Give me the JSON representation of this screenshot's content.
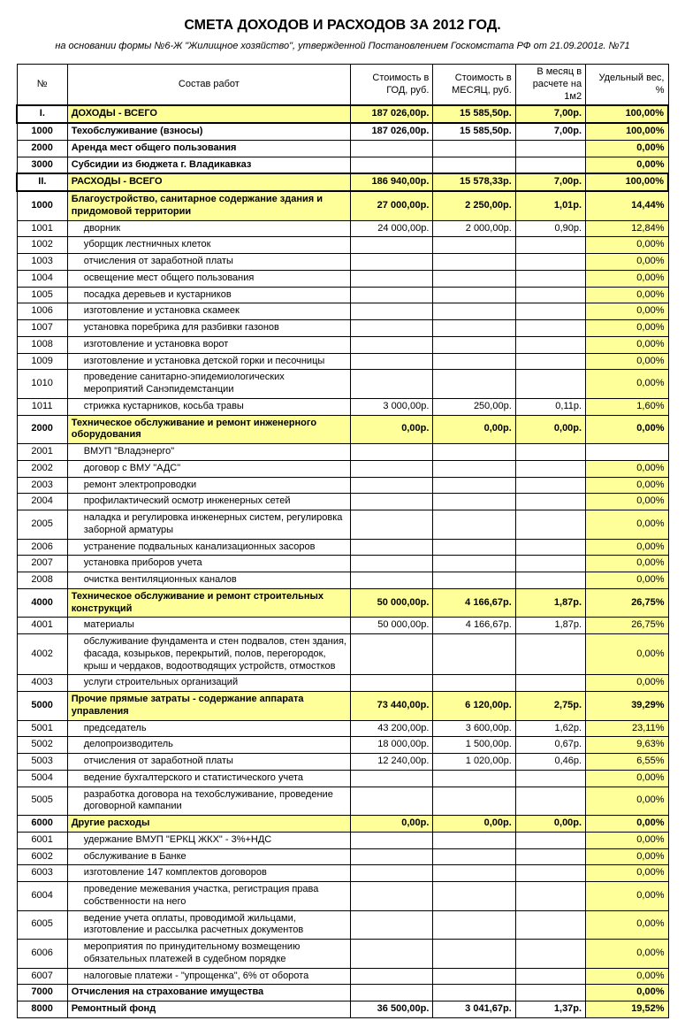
{
  "colors": {
    "yellow": "#feff99"
  },
  "title": "СМЕТА ДОХОДОВ И РАСХОДОВ ЗА 2012  ГОД.",
  "subtitle": "на основании формы №6-Ж \"Жилищное хозяйство\", утвержденной Постановлением Госкомстата РФ от 21.09.2001г. №71",
  "header": {
    "num": "№",
    "desc": "Состав работ",
    "year": "Стоимость в ГОД, руб.",
    "month": "Стоимость в МЕСЯЦ, руб.",
    "m2": "В месяц в расчете на 1м2",
    "weight": "Удельный вес, %"
  },
  "rows": [
    {
      "n": "I.",
      "d": "ДОХОДЫ - ВСЕГО",
      "y": "187 026,00р.",
      "m": "15 585,50р.",
      "p": "7,00р.",
      "w": "100,00%",
      "section": true
    },
    {
      "n": "1000",
      "d": "Техобслуживание (взносы)",
      "y": "187 026,00р.",
      "m": "15 585,50р.",
      "p": "7,00р.",
      "w": "100,00%",
      "bold": true,
      "wy": true
    },
    {
      "n": "2000",
      "d": "Аренда мест общего пользования",
      "y": "",
      "m": "",
      "p": "",
      "w": "0,00%",
      "bold": true,
      "wy": true
    },
    {
      "n": "3000",
      "d": "Субсидии из бюджета г. Владикавказ",
      "y": "",
      "m": "",
      "p": "",
      "w": "0,00%",
      "bold": true,
      "wy": true
    },
    {
      "n": "II.",
      "d": "РАСХОДЫ - ВСЕГО",
      "y": "186 940,00р.",
      "m": "15 578,33р.",
      "p": "7,00р.",
      "w": "100,00%",
      "section": true
    },
    {
      "n": "1000",
      "d": "Благоустройство, санитарное содержание здания и придомовой территории",
      "y": "27 000,00р.",
      "m": "2 250,00р.",
      "p": "1,01р.",
      "w": "14,44%",
      "bold": true,
      "ally": true
    },
    {
      "n": "1001",
      "d": "дворник",
      "y": "24 000,00р.",
      "m": "2 000,00р.",
      "p": "0,90р.",
      "w": "12,84%",
      "indent": true,
      "wy": true
    },
    {
      "n": "1002",
      "d": "уборщик лестничных клеток",
      "y": "",
      "m": "",
      "p": "",
      "w": "0,00%",
      "indent": true,
      "wy": true
    },
    {
      "n": "1003",
      "d": "отчисления от заработной платы",
      "y": "",
      "m": "",
      "p": "",
      "w": "0,00%",
      "indent": true,
      "wy": true
    },
    {
      "n": "1004",
      "d": "освещение мест общего пользования",
      "y": "",
      "m": "",
      "p": "",
      "w": "0,00%",
      "indent": true,
      "wy": true
    },
    {
      "n": "1005",
      "d": "посадка деревьев и кустарников",
      "y": "",
      "m": "",
      "p": "",
      "w": "0,00%",
      "indent": true,
      "wy": true
    },
    {
      "n": "1006",
      "d": "изготовление и установка скамеек",
      "y": "",
      "m": "",
      "p": "",
      "w": "0,00%",
      "indent": true,
      "wy": true
    },
    {
      "n": "1007",
      "d": "установка поребрика для разбивки газонов",
      "y": "",
      "m": "",
      "p": "",
      "w": "0,00%",
      "indent": true,
      "wy": true
    },
    {
      "n": "1008",
      "d": "изготовление и установка ворот",
      "y": "",
      "m": "",
      "p": "",
      "w": "0,00%",
      "indent": true,
      "wy": true
    },
    {
      "n": "1009",
      "d": "изготовление и установка детской горки и песочницы",
      "y": "",
      "m": "",
      "p": "",
      "w": "0,00%",
      "indent": true,
      "wy": true
    },
    {
      "n": "1010",
      "d": "проведение санитарно-эпидемиологических мероприятий Санэпидемстанции",
      "y": "",
      "m": "",
      "p": "",
      "w": "0,00%",
      "indent": true,
      "wy": true
    },
    {
      "n": "1011",
      "d": "стрижка кустарников, косьба травы",
      "y": "3 000,00р.",
      "m": "250,00р.",
      "p": "0,11р.",
      "w": "1,60%",
      "indent": true,
      "wy": true
    },
    {
      "n": "2000",
      "d": "Техническое обслуживание и ремонт инженерного оборудования",
      "y": "0,00р.",
      "m": "0,00р.",
      "p": "0,00р.",
      "w": "0,00%",
      "bold": true,
      "ally": true
    },
    {
      "n": "2001",
      "d": "ВМУП \"Владэнерго\"",
      "y": "",
      "m": "",
      "p": "",
      "w": "",
      "indent": true
    },
    {
      "n": "2002",
      "d": "договор с ВМУ \"АДС\"",
      "y": "",
      "m": "",
      "p": "",
      "w": "0,00%",
      "indent": true,
      "wy": true
    },
    {
      "n": "2003",
      "d": "ремонт электропроводки",
      "y": "",
      "m": "",
      "p": "",
      "w": "0,00%",
      "indent": true,
      "wy": true
    },
    {
      "n": "2004",
      "d": "профилактический осмотр инженерных сетей",
      "y": "",
      "m": "",
      "p": "",
      "w": "0,00%",
      "indent": true,
      "wy": true
    },
    {
      "n": "2005",
      "d": "наладка и регулировка инженерных систем, регулировка заборной арматуры",
      "y": "",
      "m": "",
      "p": "",
      "w": "0,00%",
      "indent": true,
      "wy": true
    },
    {
      "n": "2006",
      "d": "устранение подвальных канализационных засоров",
      "y": "",
      "m": "",
      "p": "",
      "w": "0,00%",
      "indent": true,
      "wy": true
    },
    {
      "n": "2007",
      "d": "установка приборов учета",
      "y": "",
      "m": "",
      "p": "",
      "w": "0,00%",
      "indent": true,
      "wy": true
    },
    {
      "n": "2008",
      "d": "очистка вентиляционных каналов",
      "y": "",
      "m": "",
      "p": "",
      "w": "0,00%",
      "indent": true,
      "wy": true
    },
    {
      "n": "4000",
      "d": "Техническое обслуживание и ремонт строительных конструкций",
      "y": "50 000,00р.",
      "m": "4 166,67р.",
      "p": "1,87р.",
      "w": "26,75%",
      "bold": true,
      "ally": true
    },
    {
      "n": "4001",
      "d": "материалы",
      "y": "50 000,00р.",
      "m": "4 166,67р.",
      "p": "1,87р.",
      "w": "26,75%",
      "indent": true,
      "wy": true
    },
    {
      "n": "4002",
      "d": "обслуживание фундамента и стен подвалов, стен здания, фасада, козырьков, перекрытий, полов, перегородок, крыш и чердаков, водоотводящих устройств, отмостков",
      "y": "",
      "m": "",
      "p": "",
      "w": "0,00%",
      "indent": true,
      "wy": true
    },
    {
      "n": "4003",
      "d": "услуги строительных организаций",
      "y": "",
      "m": "",
      "p": "",
      "w": "0,00%",
      "indent": true,
      "wy": true
    },
    {
      "n": "5000",
      "d": "Прочие прямые затраты - содержание аппарата управления",
      "y": "73 440,00р.",
      "m": "6 120,00р.",
      "p": "2,75р.",
      "w": "39,29%",
      "bold": true,
      "ally": true
    },
    {
      "n": "5001",
      "d": "председатель",
      "y": "43 200,00р.",
      "m": "3 600,00р.",
      "p": "1,62р.",
      "w": "23,11%",
      "indent": true,
      "wy": true
    },
    {
      "n": "5002",
      "d": "делопроизводитель",
      "y": "18 000,00р.",
      "m": "1 500,00р.",
      "p": "0,67р.",
      "w": "9,63%",
      "indent": true,
      "wy": true
    },
    {
      "n": "5003",
      "d": "отчисления от заработной платы",
      "y": "12 240,00р.",
      "m": "1 020,00р.",
      "p": "0,46р.",
      "w": "6,55%",
      "indent": true,
      "wy": true
    },
    {
      "n": "5004",
      "d": "ведение бухгалтерского и статистического учета",
      "y": "",
      "m": "",
      "p": "",
      "w": "0,00%",
      "indent": true,
      "wy": true
    },
    {
      "n": "5005",
      "d": "разработка договора на техобслуживание, проведение договорной кампании",
      "y": "",
      "m": "",
      "p": "",
      "w": "0,00%",
      "indent": true,
      "wy": true
    },
    {
      "n": "6000",
      "d": "Другие расходы",
      "y": "0,00р.",
      "m": "0,00р.",
      "p": "0,00р.",
      "w": "0,00%",
      "bold": true,
      "ally": true
    },
    {
      "n": "6001",
      "d": "удержание ВМУП \"ЕРКЦ ЖКХ\" - 3%+НДС",
      "y": "",
      "m": "",
      "p": "",
      "w": "0,00%",
      "indent": true,
      "wy": true
    },
    {
      "n": "6002",
      "d": "обслуживание в Банке",
      "y": "",
      "m": "",
      "p": "",
      "w": "0,00%",
      "indent": true,
      "wy": true
    },
    {
      "n": "6003",
      "d": "изготовление 147 комплектов договоров",
      "y": "",
      "m": "",
      "p": "",
      "w": "0,00%",
      "indent": true,
      "wy": true
    },
    {
      "n": "6004",
      "d": "проведение межевания участка, регистрация права собственности на него",
      "y": "",
      "m": "",
      "p": "",
      "w": "0,00%",
      "indent": true,
      "wy": true
    },
    {
      "n": "6005",
      "d": "ведение учета оплаты, проводимой жильцами, изготовление и рассылка расчетных документов",
      "y": "",
      "m": "",
      "p": "",
      "w": "0,00%",
      "indent": true,
      "wy": true
    },
    {
      "n": "6006",
      "d": "мероприятия по принудительному возмещению обязательных платежей в судебном порядке",
      "y": "",
      "m": "",
      "p": "",
      "w": "0,00%",
      "indent": true,
      "wy": true
    },
    {
      "n": "6007",
      "d": "налоговые платежи - \"упрощенка\", 6% от оборота",
      "y": "",
      "m": "",
      "p": "",
      "w": "0,00%",
      "indent": true,
      "wy": true
    },
    {
      "n": "7000",
      "d": "Отчисления на страхование имущества",
      "y": "",
      "m": "",
      "p": "",
      "w": "0,00%",
      "bold": true,
      "wy": true
    },
    {
      "n": "8000",
      "d": "Ремонтный фонд",
      "y": "36 500,00р.",
      "m": "3 041,67р.",
      "p": "1,37р.",
      "w": "19,52%",
      "bold": true,
      "wy": true
    }
  ]
}
